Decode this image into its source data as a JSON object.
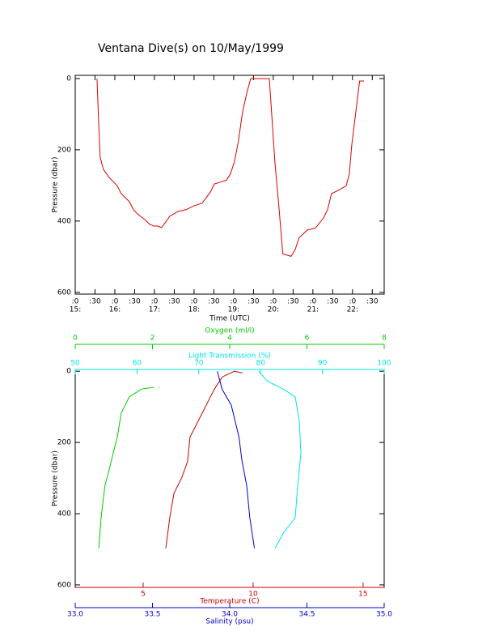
{
  "title": "Ventana Dive(s) on 10/May/1999",
  "chart_data": [
    {
      "type": "line",
      "ylabel": "Pressure (dbar)",
      "xlabel": "Time (UTC)",
      "xlim": [
        15,
        22.8
      ],
      "ylim": [
        605,
        -9
      ],
      "yticks": [
        0,
        200,
        400,
        600
      ],
      "xticks": [
        {
          "value": 15,
          "label": ":0"
        },
        {
          "value": 15.5,
          "label": ":30"
        },
        {
          "value": 16,
          "label": ":0"
        },
        {
          "value": 16.5,
          "label": ":30"
        },
        {
          "value": 17,
          "label": ":0"
        },
        {
          "value": 17.5,
          "label": ":30"
        },
        {
          "value": 18,
          "label": ":0"
        },
        {
          "value": 18.5,
          "label": ":30"
        },
        {
          "value": 19,
          "label": ":0"
        },
        {
          "value": 19.5,
          "label": ":30"
        },
        {
          "value": 20,
          "label": ":0"
        },
        {
          "value": 20.5,
          "label": ":30"
        },
        {
          "value": 21,
          "label": ":0"
        },
        {
          "value": 21.5,
          "label": ":30"
        },
        {
          "value": 22,
          "label": ":0"
        },
        {
          "value": 22.5,
          "label": ":30"
        }
      ],
      "xticks_hours": [
        {
          "value": 15,
          "label": "15:"
        },
        {
          "value": 16,
          "label": "16:"
        },
        {
          "value": 17,
          "label": "17:"
        },
        {
          "value": 18,
          "label": "18:"
        },
        {
          "value": 19,
          "label": "19:"
        },
        {
          "value": 20,
          "label": "20:"
        },
        {
          "value": 21,
          "label": "21:"
        },
        {
          "value": 22,
          "label": "22:"
        }
      ],
      "series": [
        {
          "color": "#dd0000",
          "x": [
            15.55,
            15.59,
            15.63,
            15.71,
            15.86,
            16.06,
            16.16,
            16.37,
            16.47,
            16.57,
            16.78,
            16.88,
            16.98,
            17.08,
            17.18,
            17.29,
            17.39,
            17.49,
            17.59,
            17.8,
            18.0,
            18.2,
            18.31,
            18.41,
            18.51,
            18.71,
            18.82,
            18.92,
            19.02,
            19.12,
            19.22,
            19.33,
            19.43,
            19.9,
            20.04,
            20.14,
            20.24,
            20.45,
            20.55,
            20.65,
            20.86,
            21.06,
            21.27,
            21.37,
            21.47,
            21.67,
            21.84,
            21.92,
            21.98,
            22.08,
            22.18,
            22.29
          ],
          "values": [
            0,
            120,
            221,
            255,
            278,
            301,
            323,
            346,
            368,
            380,
            398,
            409,
            414,
            414,
            418,
            402,
            386,
            380,
            373,
            368,
            357,
            350,
            334,
            319,
            296,
            289,
            285,
            267,
            233,
            176,
            97,
            41,
            0,
            0,
            233,
            357,
            492,
            499,
            481,
            447,
            425,
            420,
            391,
            368,
            323,
            312,
            301,
            267,
            188,
            97,
            7,
            7
          ]
        }
      ]
    },
    {
      "type": "profile",
      "ylabel": "Pressure (dbar)",
      "ylim": [
        607,
        -5
      ],
      "yticks": [
        0,
        200,
        400,
        600
      ],
      "axes": [
        {
          "label": "Oxygen (ml/l)",
          "color": "#00cc00",
          "xlim": [
            0,
            8
          ],
          "xticks": [
            0,
            2,
            4,
            6,
            8
          ]
        },
        {
          "label": "Light Transmission (%)",
          "color": "#00e5e5",
          "xlim": [
            50,
            100
          ],
          "xticks": [
            50,
            60,
            70,
            80,
            90,
            100
          ]
        },
        {
          "label": "Temperature (C)",
          "color": "#cc0000",
          "xlim": [
            1.91,
            15.96
          ],
          "xticks": [
            5,
            10,
            15
          ]
        },
        {
          "label": "Salinity (psu)",
          "color": "#0000cc",
          "xlim": [
            33,
            35
          ],
          "xticks": [
            {
              "value": 33,
              "label": "33.0"
            },
            33.5,
            {
              "value": 34,
              "label": "34.0"
            },
            34.5,
            {
              "value": 35,
              "label": "35.0"
            }
          ]
        }
      ],
      "series": [
        {
          "axis": 0,
          "color": "#00cc00",
          "x": [
            0.61,
            0.67,
            0.77,
            0.88,
            0.98,
            1.09,
            1.19,
            1.4,
            1.72,
            2.03
          ],
          "values": [
            497,
            411,
            321,
            276,
            231,
            185,
            118,
            72,
            50,
            45
          ]
        },
        {
          "axis": 1,
          "color": "#00e5e5",
          "x": [
            79.71,
            81.02,
            83.64,
            85.6,
            86.26,
            86.52,
            86.0,
            85.6,
            83.64,
            82.33
          ],
          "values": [
            0,
            27,
            50,
            72,
            140,
            231,
            321,
            411,
            456,
            497
          ]
        },
        {
          "axis": 2,
          "color": "#cc0000",
          "x": [
            9.52,
            9.15,
            8.6,
            8.24,
            7.87,
            7.5,
            7.13,
            7.02,
            6.76,
            6.4,
            6.21,
            6.03
          ],
          "values": [
            5,
            0,
            16,
            50,
            95,
            140,
            185,
            253,
            298,
            343,
            411,
            497
          ]
        },
        {
          "axis": 3,
          "color": "#0000cc",
          "x": [
            33.92,
            33.95,
            34.01,
            34.06,
            34.08,
            34.11,
            34.13,
            34.16
          ],
          "values": [
            0,
            50,
            95,
            185,
            253,
            321,
            411,
            497
          ]
        }
      ]
    }
  ]
}
